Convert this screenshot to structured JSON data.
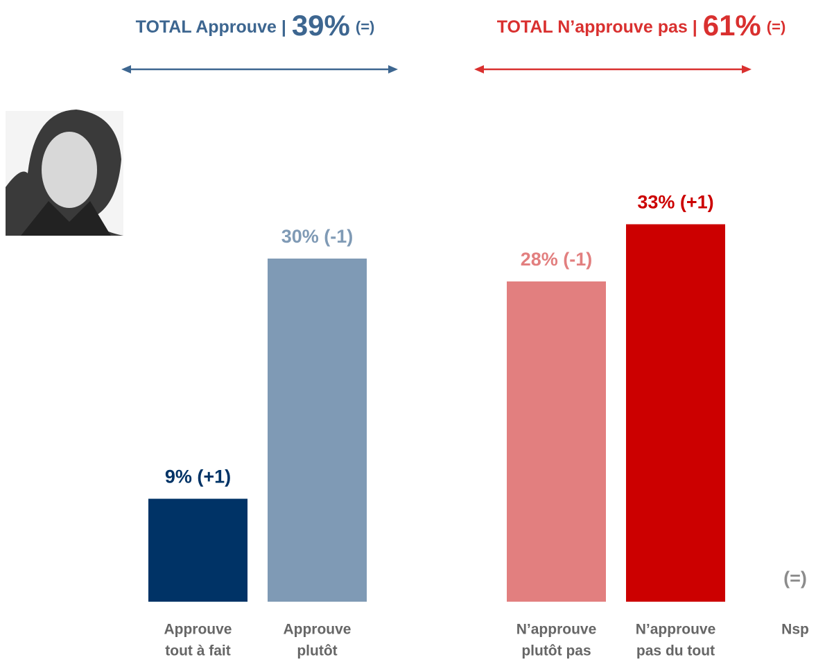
{
  "chart_data": {
    "type": "bar",
    "totals": [
      {
        "label": "TOTAL Approuve |",
        "value": 39,
        "value_label": "39%",
        "change": "(=)",
        "color": "#3d6690"
      },
      {
        "label": "TOTAL N’approuve pas |",
        "value": 61,
        "value_label": "61%",
        "change": "(=)",
        "color": "#d9302f"
      }
    ],
    "categories": [
      [
        "Approuve",
        "tout à fait"
      ],
      [
        "Approuve",
        "plutôt"
      ],
      [
        "N’approuve",
        "plutôt pas"
      ],
      [
        "N’approuve",
        "pas du tout"
      ],
      [
        "Nsp"
      ]
    ],
    "values": [
      9,
      30,
      28,
      33,
      0
    ],
    "value_labels": [
      "9% (+1)",
      "30% (-1)",
      "28% (-1)",
      "33% (+1)",
      "(=)"
    ],
    "colors": [
      "#003366",
      "#7f9ab5",
      "#e27f7f",
      "#cc0000",
      "#8c8c8c"
    ]
  }
}
